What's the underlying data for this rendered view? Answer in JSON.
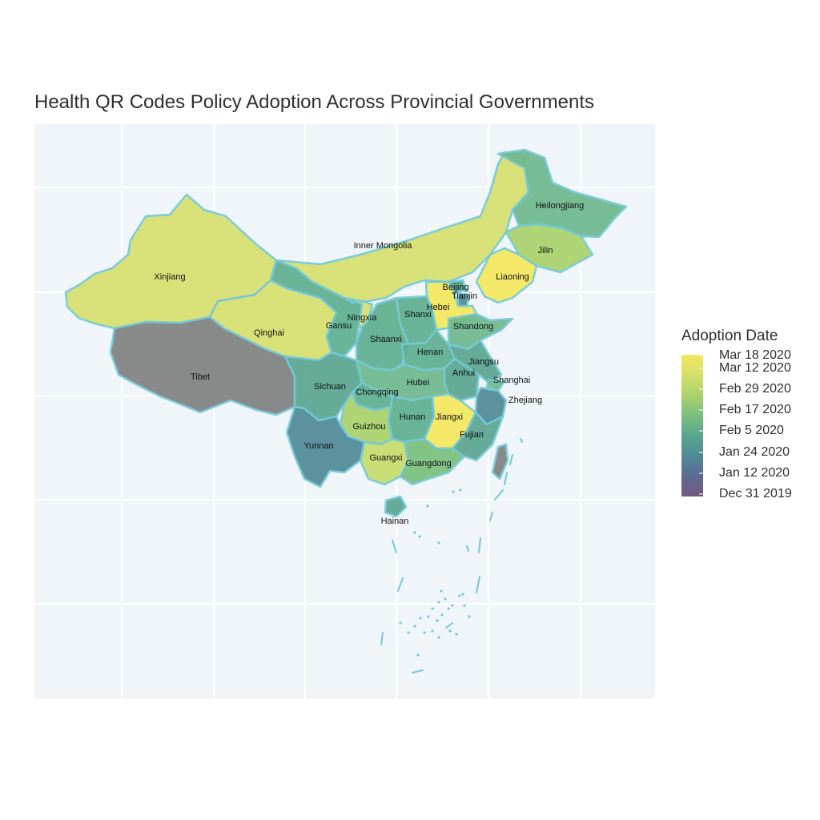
{
  "title": "Health QR Codes Policy Adoption Across Provincial Governments",
  "legend": {
    "title": "Adoption Date",
    "ticks": [
      "Mar 18 2020",
      "Mar 12 2020",
      "Feb 29 2020",
      "Feb 17 2020",
      "Feb 5 2020",
      "Jan 24 2020",
      "Jan 12 2020",
      "Dec 31 2019"
    ],
    "colorscale": [
      "#73577f",
      "#5d6b94",
      "#4f8a97",
      "#5aa58f",
      "#79bf7d",
      "#a9d26a",
      "#d6df6d",
      "#f4e75c"
    ]
  },
  "colors": {
    "background": "#f0f5fa",
    "border": "#73c8d6",
    "gridline": "#ffffff",
    "no_data": "#808080"
  },
  "provinces": [
    {
      "name": "Xinjiang",
      "fill": "#d6df6d"
    },
    {
      "name": "Tibet",
      "fill": "#808080"
    },
    {
      "name": "Qinghai",
      "fill": "#d6df6d"
    },
    {
      "name": "Gansu",
      "fill": "#5eae8f"
    },
    {
      "name": "Inner Mongolia",
      "fill": "#d6df6d"
    },
    {
      "name": "Heilongjiang",
      "fill": "#6db88c"
    },
    {
      "name": "Jilin",
      "fill": "#a9d26a"
    },
    {
      "name": "Liaoning",
      "fill": "#f4e75c"
    },
    {
      "name": "Beijing",
      "fill": "#5aa58f"
    },
    {
      "name": "Tianjin",
      "fill": "#4f8a97"
    },
    {
      "name": "Hebei",
      "fill": "#f4e75c"
    },
    {
      "name": "Shanxi",
      "fill": "#5eae8f"
    },
    {
      "name": "Shandong",
      "fill": "#6db88c"
    },
    {
      "name": "Ningxia",
      "fill": "#d6df6d"
    },
    {
      "name": "Shaanxi",
      "fill": "#5eae8f"
    },
    {
      "name": "Henan",
      "fill": "#5eae8f"
    },
    {
      "name": "Jiangsu",
      "fill": "#5aa58f"
    },
    {
      "name": "Anhui",
      "fill": "#5aa58f"
    },
    {
      "name": "Shanghai",
      "fill": "#6db88c"
    },
    {
      "name": "Hubei",
      "fill": "#6db88c"
    },
    {
      "name": "Sichuan",
      "fill": "#5aa58f"
    },
    {
      "name": "Chongqing",
      "fill": "#5eae8f"
    },
    {
      "name": "Zhejiang",
      "fill": "#4f8a97"
    },
    {
      "name": "Hunan",
      "fill": "#5eae8f"
    },
    {
      "name": "Jiangxi",
      "fill": "#f4e75c"
    },
    {
      "name": "Guizhou",
      "fill": "#a9d26a"
    },
    {
      "name": "Fujian",
      "fill": "#5aa58f"
    },
    {
      "name": "Yunnan",
      "fill": "#4f8a97"
    },
    {
      "name": "Guangxi",
      "fill": "#c6db6b"
    },
    {
      "name": "Guangdong",
      "fill": "#79bf7d"
    },
    {
      "name": "Hainan",
      "fill": "#5aa58f"
    },
    {
      "name": "Taiwan",
      "fill": "#808080"
    }
  ]
}
